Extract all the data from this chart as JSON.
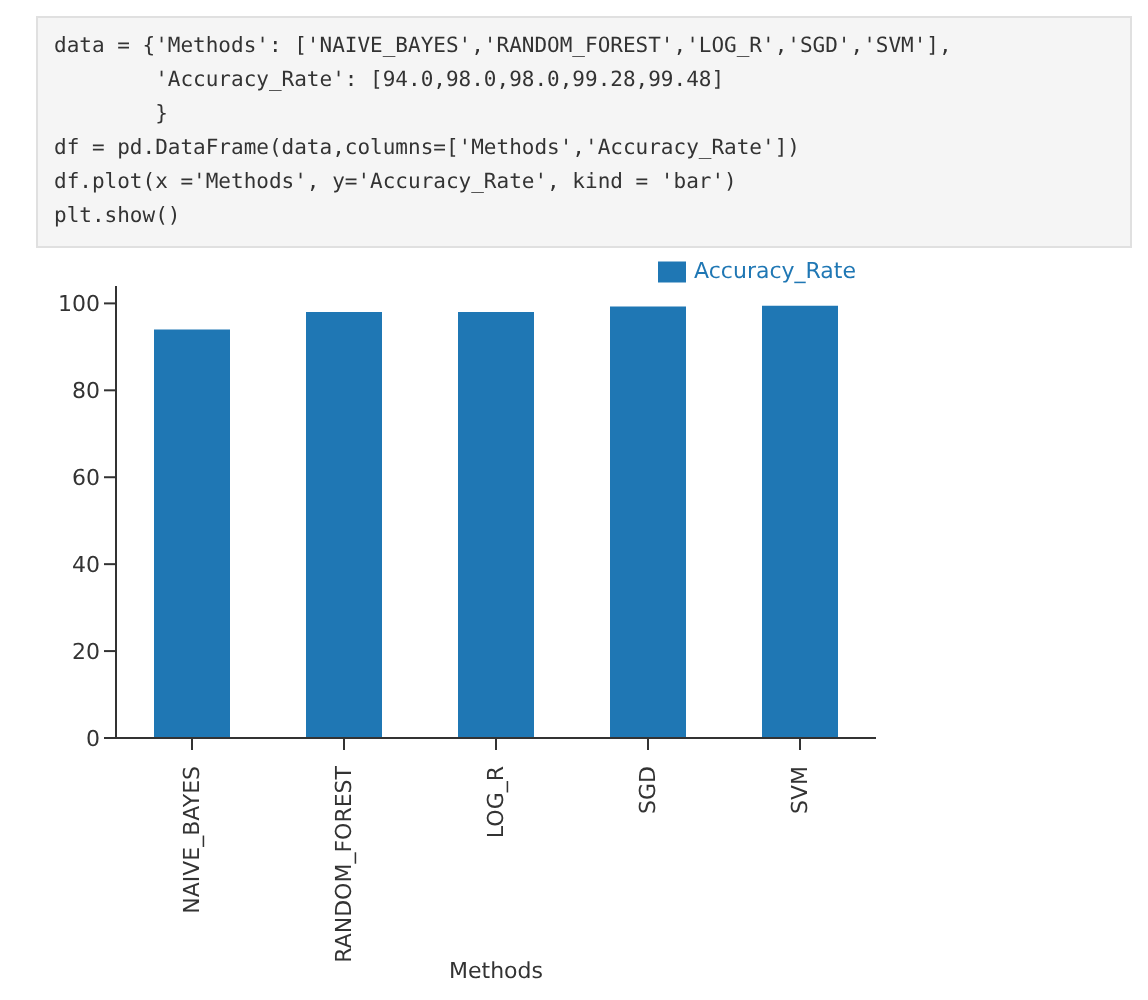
{
  "chart_data": {
    "type": "bar",
    "xlabel": "Methods",
    "categories": [
      "NAIVE_BAYES",
      "RANDOM_FOREST",
      "LOG_R",
      "SGD",
      "SVM"
    ],
    "series": [
      {
        "name": "Accuracy_Rate",
        "color": "#1f77b4",
        "values": [
          94.0,
          98.0,
          98.0,
          99.28,
          99.48
        ]
      }
    ],
    "ylim": [
      0,
      104
    ],
    "yticks": [
      0,
      20,
      40,
      60,
      80,
      100
    ],
    "grid": false,
    "legend": "top right",
    "annotations": [
      "data = {'Methods': ['NAIVE_BAYES','RANDOM_FOREST','LOG_R','SGD','SVM'],",
      "        'Accuracy_Rate': [94.0,98.0,98.0,99.28,99.48]",
      "        }",
      "df = pd.DataFrame(data,columns=['Methods','Accuracy_Rate'])",
      "df.plot(x ='Methods', y='Accuracy_Rate', kind = 'bar')",
      "plt.show()"
    ]
  }
}
